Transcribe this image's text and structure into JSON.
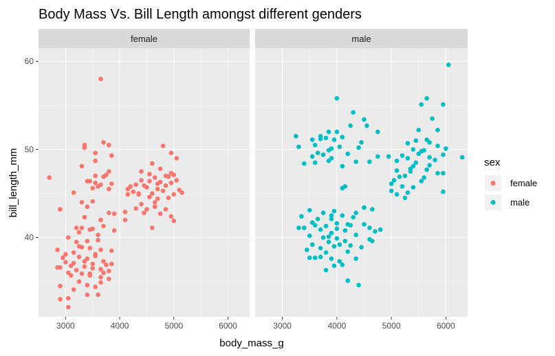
{
  "chart_data": {
    "type": "scatter",
    "title": "Body Mass Vs. Bill Length amongst different genders",
    "xlabel": "body_mass_g",
    "ylabel": "bill_length_mm",
    "xlim": [
      2500,
      6400
    ],
    "ylim": [
      31,
      61.5
    ],
    "x_ticks": [
      3000,
      4000,
      5000,
      6000
    ],
    "y_ticks": [
      40,
      50,
      60
    ],
    "grid": true,
    "legend": {
      "title": "sex",
      "position": "right",
      "entries": [
        {
          "label": "female",
          "color": "#F8766D"
        },
        {
          "label": "male",
          "color": "#00BFC4"
        }
      ]
    },
    "facets": [
      {
        "label": "female",
        "color": "#F8766D",
        "points": [
          [
            2700,
            46.8
          ],
          [
            2900,
            43.2
          ],
          [
            3650,
            58.0
          ],
          [
            3350,
            50.5
          ],
          [
            3350,
            50.2
          ],
          [
            3550,
            49.6
          ],
          [
            3700,
            50.8
          ],
          [
            3800,
            50.5
          ],
          [
            3550,
            48.7
          ],
          [
            3300,
            48.1
          ],
          [
            3850,
            49.3
          ],
          [
            3800,
            47.5
          ],
          [
            3700,
            46.9
          ],
          [
            3550,
            47.0
          ],
          [
            3750,
            47.1
          ],
          [
            3450,
            46.4
          ],
          [
            3550,
            46.2
          ],
          [
            3650,
            46.0
          ],
          [
            3850,
            46.1
          ],
          [
            3400,
            46.4
          ],
          [
            3600,
            45.8
          ],
          [
            3500,
            45.6
          ],
          [
            3800,
            45.5
          ],
          [
            3900,
            42.7
          ],
          [
            3400,
            43.5
          ],
          [
            3300,
            44.0
          ],
          [
            3500,
            44.1
          ],
          [
            3150,
            45.1
          ],
          [
            3650,
            42.0
          ],
          [
            3800,
            42.8
          ],
          [
            3350,
            42.3
          ],
          [
            3200,
            41.1
          ],
          [
            3250,
            40.6
          ],
          [
            3300,
            41.1
          ],
          [
            3500,
            41.0
          ],
          [
            3700,
            41.3
          ],
          [
            3900,
            40.8
          ],
          [
            3050,
            40.0
          ],
          [
            3200,
            39.5
          ],
          [
            3400,
            39.6
          ],
          [
            3600,
            39.7
          ],
          [
            3300,
            38.9
          ],
          [
            3450,
            38.8
          ],
          [
            3650,
            38.6
          ],
          [
            3150,
            38.3
          ],
          [
            3250,
            37.8
          ],
          [
            3400,
            37.6
          ],
          [
            3550,
            37.9
          ],
          [
            3700,
            37.3
          ],
          [
            3850,
            37.0
          ],
          [
            3000,
            37.2
          ],
          [
            3100,
            36.8
          ],
          [
            3350,
            36.7
          ],
          [
            3500,
            36.5
          ],
          [
            3650,
            36.4
          ],
          [
            3800,
            36.2
          ],
          [
            2900,
            36.6
          ],
          [
            3050,
            36.0
          ],
          [
            3300,
            35.9
          ],
          [
            3450,
            35.7
          ],
          [
            3650,
            35.5
          ],
          [
            3800,
            35.3
          ],
          [
            3250,
            35.0
          ],
          [
            3400,
            34.6
          ],
          [
            3550,
            34.4
          ],
          [
            3150,
            34.1
          ],
          [
            3400,
            33.5
          ],
          [
            2900,
            34.5
          ],
          [
            3050,
            33.1
          ],
          [
            3600,
            33.5
          ],
          [
            2900,
            33.0
          ],
          [
            3050,
            32.1
          ],
          [
            2850,
            38.6
          ],
          [
            3000,
            38.1
          ],
          [
            3350,
            37.3
          ],
          [
            3500,
            37.0
          ],
          [
            3700,
            36.0
          ],
          [
            3200,
            36.3
          ],
          [
            2850,
            36.6
          ],
          [
            3100,
            35.7
          ],
          [
            3850,
            38.5
          ],
          [
            3550,
            38.1
          ],
          [
            3600,
            40.3
          ],
          [
            3450,
            40.9
          ],
          [
            3750,
            36.9
          ],
          [
            3250,
            39.0
          ],
          [
            2950,
            37.7
          ],
          [
            3150,
            37.1
          ],
          [
            3450,
            35.9
          ],
          [
            3650,
            34.9
          ],
          [
            4800,
            50.4
          ],
          [
            4950,
            49.6
          ],
          [
            5050,
            49.0
          ],
          [
            4600,
            48.4
          ],
          [
            4400,
            47.5
          ],
          [
            4950,
            47.3
          ],
          [
            5000,
            47.1
          ],
          [
            4850,
            47.0
          ],
          [
            4650,
            46.8
          ],
          [
            4400,
            46.5
          ],
          [
            4550,
            46.4
          ],
          [
            4750,
            46.3
          ],
          [
            4950,
            46.2
          ],
          [
            4300,
            46.0
          ],
          [
            4200,
            45.8
          ],
          [
            4500,
            45.7
          ],
          [
            4700,
            45.5
          ],
          [
            4800,
            45.3
          ],
          [
            5150,
            45.1
          ],
          [
            4600,
            45.0
          ],
          [
            4150,
            44.9
          ],
          [
            4350,
            44.9
          ],
          [
            4550,
            44.6
          ],
          [
            4900,
            44.5
          ],
          [
            4700,
            44.4
          ],
          [
            4400,
            43.8
          ],
          [
            4650,
            43.5
          ],
          [
            4850,
            43.2
          ],
          [
            4100,
            42.9
          ],
          [
            4500,
            43.2
          ],
          [
            4750,
            42.7
          ],
          [
            4950,
            42.4
          ],
          [
            4100,
            42.0
          ],
          [
            5000,
            41.9
          ],
          [
            4600,
            41.1
          ],
          [
            4700,
            46.1
          ],
          [
            4850,
            45.9
          ],
          [
            4250,
            45.2
          ],
          [
            4450,
            45.9
          ],
          [
            4900,
            46.9
          ],
          [
            5100,
            45.4
          ],
          [
            4650,
            44.0
          ],
          [
            4300,
            43.3
          ],
          [
            4450,
            42.8
          ],
          [
            4150,
            45.5
          ],
          [
            5050,
            46.5
          ],
          [
            4750,
            47.8
          ],
          [
            4550,
            47.2
          ],
          [
            4350,
            45.0
          ],
          [
            5000,
            44.9
          ]
        ]
      },
      {
        "label": "male",
        "color": "#00BFC4",
        "points": [
          [
            6050,
            59.6
          ],
          [
            5650,
            55.8
          ],
          [
            5550,
            55.1
          ],
          [
            5950,
            55.1
          ],
          [
            4000,
            55.8
          ],
          [
            4300,
            54.2
          ],
          [
            4500,
            53.4
          ],
          [
            5750,
            53.5
          ],
          [
            4550,
            52.7
          ],
          [
            4250,
            52.7
          ],
          [
            4750,
            52.0
          ],
          [
            5850,
            52.2
          ],
          [
            5500,
            52.2
          ],
          [
            3850,
            52.0
          ],
          [
            3700,
            51.5
          ],
          [
            4000,
            52.0
          ],
          [
            3250,
            51.5
          ],
          [
            3800,
            51.3
          ],
          [
            3700,
            51.2
          ],
          [
            4100,
            51.4
          ],
          [
            3550,
            51.1
          ],
          [
            3950,
            51.1
          ],
          [
            5650,
            51.1
          ],
          [
            5450,
            51.0
          ],
          [
            5300,
            50.7
          ],
          [
            5700,
            50.8
          ],
          [
            5850,
            50.4
          ],
          [
            6000,
            50.1
          ],
          [
            5400,
            50.0
          ],
          [
            5550,
            49.8
          ],
          [
            3300,
            50.3
          ],
          [
            3600,
            50.5
          ],
          [
            4050,
            50.3
          ],
          [
            4400,
            50.2
          ],
          [
            4450,
            50.8
          ],
          [
            3900,
            50.1
          ],
          [
            4750,
            49.2
          ],
          [
            3750,
            49.4
          ],
          [
            3900,
            49.0
          ],
          [
            3650,
            49.6
          ],
          [
            3550,
            49.2
          ],
          [
            3850,
            49.9
          ],
          [
            4200,
            49.5
          ],
          [
            5200,
            49.3
          ],
          [
            5500,
            49.5
          ],
          [
            5950,
            49.4
          ],
          [
            5700,
            49.1
          ],
          [
            5800,
            48.8
          ],
          [
            5600,
            49.9
          ],
          [
            5300,
            49.0
          ],
          [
            4950,
            49.2
          ],
          [
            6300,
            49.1
          ],
          [
            5100,
            48.7
          ],
          [
            3600,
            48.5
          ],
          [
            4350,
            48.6
          ],
          [
            3850,
            48.7
          ],
          [
            4100,
            48.1
          ],
          [
            3400,
            48.4
          ],
          [
            4600,
            48.6
          ],
          [
            5400,
            48.1
          ],
          [
            5650,
            47.7
          ],
          [
            5350,
            47.5
          ],
          [
            5950,
            47.3
          ],
          [
            5250,
            47.0
          ],
          [
            5850,
            47.3
          ],
          [
            5150,
            46.9
          ],
          [
            5550,
            46.4
          ],
          [
            5000,
            46.1
          ],
          [
            5050,
            46.5
          ],
          [
            5400,
            45.7
          ],
          [
            5200,
            45.8
          ],
          [
            4150,
            45.8
          ],
          [
            4100,
            45.6
          ],
          [
            5000,
            45.3
          ],
          [
            5300,
            45.1
          ],
          [
            5950,
            45.2
          ],
          [
            5100,
            44.9
          ],
          [
            5250,
            44.5
          ],
          [
            4500,
            43.4
          ],
          [
            4650,
            43.2
          ],
          [
            3500,
            43.1
          ],
          [
            3950,
            43.0
          ],
          [
            3900,
            42.5
          ],
          [
            4100,
            42.5
          ],
          [
            4350,
            42.8
          ],
          [
            3650,
            42.1
          ],
          [
            3900,
            42.1
          ],
          [
            4300,
            42.3
          ],
          [
            3550,
            41.7
          ],
          [
            4000,
            41.6
          ],
          [
            4200,
            41.5
          ],
          [
            3600,
            41.4
          ],
          [
            3800,
            41.3
          ],
          [
            4000,
            41.0
          ],
          [
            4500,
            41.5
          ],
          [
            3300,
            41.1
          ],
          [
            3400,
            41.1
          ],
          [
            3700,
            40.9
          ],
          [
            4150,
            40.8
          ],
          [
            4700,
            40.7
          ],
          [
            3900,
            40.5
          ],
          [
            4350,
            40.3
          ],
          [
            3500,
            40.2
          ],
          [
            3750,
            40.0
          ],
          [
            4000,
            39.9
          ],
          [
            4600,
            39.8
          ],
          [
            3850,
            39.5
          ],
          [
            4150,
            39.6
          ],
          [
            4650,
            39.6
          ],
          [
            3550,
            39.2
          ],
          [
            3950,
            39.0
          ],
          [
            4250,
            39.1
          ],
          [
            3700,
            38.8
          ],
          [
            4450,
            38.9
          ],
          [
            3800,
            38.3
          ],
          [
            4200,
            38.4
          ],
          [
            3700,
            37.8
          ],
          [
            3900,
            37.6
          ],
          [
            4350,
            37.6
          ],
          [
            3500,
            37.7
          ],
          [
            3600,
            37.7
          ],
          [
            4050,
            37.3
          ],
          [
            4100,
            36.9
          ],
          [
            3800,
            36.3
          ],
          [
            3950,
            36.8
          ],
          [
            4200,
            35.1
          ],
          [
            4400,
            34.6
          ],
          [
            5350,
            47.8
          ],
          [
            5700,
            48.2
          ],
          [
            5450,
            48.5
          ],
          [
            5100,
            47.6
          ],
          [
            5600,
            46.8
          ],
          [
            4250,
            41.4
          ],
          [
            3850,
            40.1
          ],
          [
            4050,
            39.2
          ],
          [
            3450,
            38.6
          ],
          [
            4600,
            41.1
          ],
          [
            4800,
            40.9
          ],
          [
            3350,
            42.4
          ],
          [
            3750,
            42.8
          ]
        ]
      }
    ]
  }
}
